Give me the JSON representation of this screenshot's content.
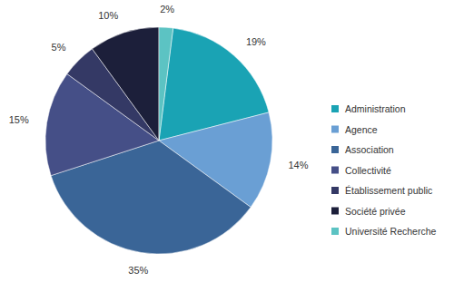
{
  "chart_data": {
    "type": "pie",
    "categories": [
      "Administration",
      "Agence",
      "Association",
      "Collectivité",
      "Établissement public",
      "Société privée",
      "Université Recherche"
    ],
    "values": [
      19,
      14,
      35,
      15,
      5,
      10,
      2
    ],
    "value_labels": [
      "19%",
      "14%",
      "35%",
      "15%",
      "5%",
      "10%",
      "2%"
    ],
    "colors": [
      "#1aa3b4",
      "#6a9fd4",
      "#3a6597",
      "#454f87",
      "#343965",
      "#1c1f3a",
      "#5cc3c3"
    ],
    "data_labels": true,
    "legend": "right"
  }
}
